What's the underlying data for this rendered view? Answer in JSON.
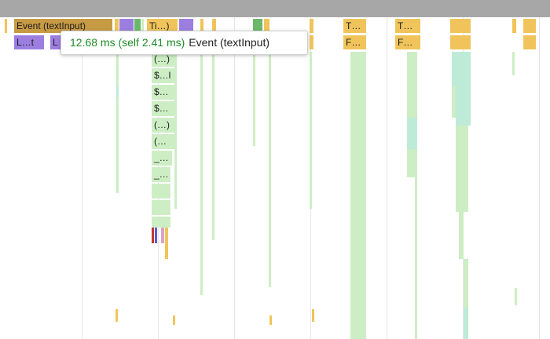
{
  "toolbar": {},
  "flame_chart": {
    "blocks": [
      {
        "label": "Event (textInput)",
        "kind": "event"
      },
      {
        "label": "L…t",
        "kind": "layout"
      },
      {
        "label": "L",
        "kind": "layout"
      },
      {
        "label": "Ti…)",
        "kind": "timer"
      },
      {
        "label": "T…",
        "kind": "timer"
      },
      {
        "label": "F…",
        "kind": "timer"
      },
      {
        "label": "T…",
        "kind": "timer"
      },
      {
        "label": "F…",
        "kind": "timer"
      },
      {
        "label": "(…)",
        "kind": "script"
      },
      {
        "label": "$…l",
        "kind": "script"
      },
      {
        "label": "$…",
        "kind": "script"
      },
      {
        "label": "$…",
        "kind": "script"
      },
      {
        "label": "(…)",
        "kind": "script"
      },
      {
        "label": "(…",
        "kind": "script"
      },
      {
        "label": "_…",
        "kind": "script"
      },
      {
        "label": "_…",
        "kind": "script"
      }
    ],
    "colors": {
      "event": "#c79a44",
      "timer": "#f0c45a",
      "layout": "#9c7ee0",
      "script": "#cdeec4",
      "script_alt": "#bdebd8",
      "paint": "#6cb86a"
    }
  },
  "tooltip": {
    "duration": "12.68 ms (self 2.41 ms)",
    "name": "Event (textInput)"
  }
}
